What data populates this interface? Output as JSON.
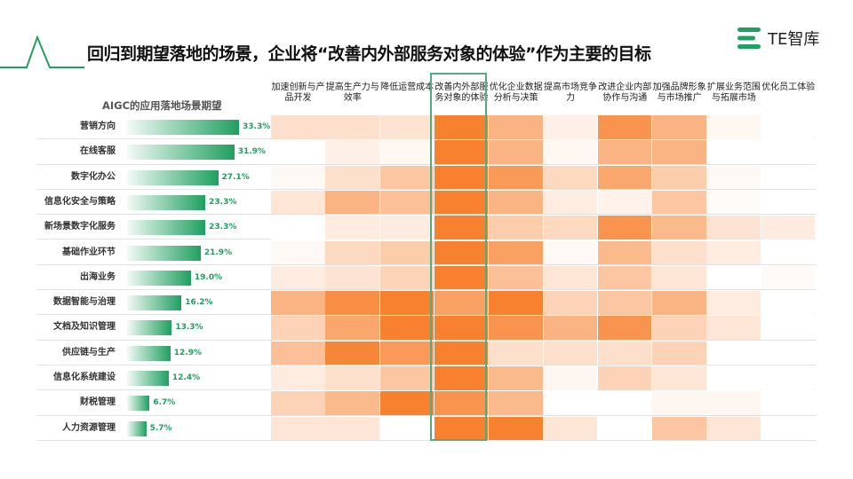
{
  "title": "回归到期望落地的场景，企业将“改善内外部服务对象的体验”作为主要的目标",
  "logo": "TE智库",
  "colors": {
    "accent": "#1fa05f",
    "heat": "#f7812e"
  },
  "chart_data": {
    "type": "heatmap",
    "title": "AIGC的应用落地场景期望",
    "bar_series": {
      "name": "AIGC的应用落地场景期望",
      "unit": "%"
    },
    "highlighted_column": "改善内外部服务对象的体验",
    "columns": [
      "加速创新与产品开发",
      "提高生产力与效率",
      "降低运营成本",
      "改善内外部服务对象的体验",
      "优化企业数据分析与决策",
      "提高市场竞争力",
      "改进企业内部协作与沟通",
      "加强品牌形象与市场推广",
      "扩展业务范围与拓展市场",
      "优化员工体验"
    ],
    "rows": [
      {
        "label": "营销方向",
        "value": 33.3,
        "value_label": "33.3%",
        "heat": [
          0.25,
          0.25,
          0.22,
          1,
          0.6,
          0.12,
          0.85,
          0.6,
          0.06,
          0
        ]
      },
      {
        "label": "在线客服",
        "value": 31.9,
        "value_label": "31.9%",
        "heat": [
          0,
          0.12,
          0.06,
          1,
          0.6,
          0.06,
          0.6,
          0.6,
          0,
          0
        ]
      },
      {
        "label": "数字化办公",
        "value": 27.1,
        "value_label": "27.1%",
        "heat": [
          0.05,
          0.25,
          0.45,
          1,
          0.8,
          0.3,
          0.7,
          0.4,
          0.05,
          0
        ]
      },
      {
        "label": "信息化安全与策略",
        "value": 23.3,
        "value_label": "23.3%",
        "heat": [
          0.2,
          0.6,
          0.5,
          1,
          0.6,
          0.15,
          0.1,
          0.45,
          0.03,
          0
        ]
      },
      {
        "label": "新场景数字化服务",
        "value": 23.3,
        "value_label": "23.3%",
        "heat": [
          0,
          0.15,
          0.15,
          1,
          0.4,
          0.3,
          0.85,
          0.55,
          0.22,
          0.15
        ]
      },
      {
        "label": "基础作业环节",
        "value": 21.9,
        "value_label": "21.9%",
        "heat": [
          0.05,
          0.3,
          0.4,
          1,
          0.75,
          0.05,
          0.55,
          0.25,
          0.15,
          0
        ]
      },
      {
        "label": "出海业务",
        "value": 19.0,
        "value_label": "19.0%",
        "heat": [
          0.15,
          0.22,
          0.35,
          1,
          0.5,
          0.2,
          0.45,
          0.2,
          0,
          0.04
        ]
      },
      {
        "label": "数据智能与治理",
        "value": 16.2,
        "value_label": "16.2%",
        "heat": [
          0.6,
          0.9,
          1,
          0.75,
          1,
          0.35,
          0.45,
          0.6,
          0.15,
          0
        ]
      },
      {
        "label": "文档及知识管理",
        "value": 13.3,
        "value_label": "13.3%",
        "heat": [
          0.35,
          0.7,
          1,
          1,
          0.85,
          0.6,
          0.85,
          0.35,
          0.2,
          0
        ]
      },
      {
        "label": "供应链与生产",
        "value": 12.9,
        "value_label": "12.9%",
        "heat": [
          0.5,
          0.95,
          0.8,
          1,
          0.25,
          0.25,
          0.25,
          0.35,
          0,
          0
        ]
      },
      {
        "label": "信息化系统建设",
        "value": 12.4,
        "value_label": "12.4%",
        "heat": [
          0.15,
          0.25,
          0.45,
          1,
          0.55,
          0.07,
          0.35,
          0.2,
          0,
          0
        ]
      },
      {
        "label": "财税管理",
        "value": 6.7,
        "value_label": "6.7%",
        "heat": [
          0.35,
          0.55,
          1,
          0.85,
          0.55,
          0,
          0,
          0.07,
          0.07,
          0
        ]
      },
      {
        "label": "人力资源管理",
        "value": 5.7,
        "value_label": "5.7%",
        "heat": [
          0.2,
          0.2,
          0,
          1,
          1,
          0.2,
          0,
          0.45,
          0.2,
          0
        ]
      }
    ]
  }
}
